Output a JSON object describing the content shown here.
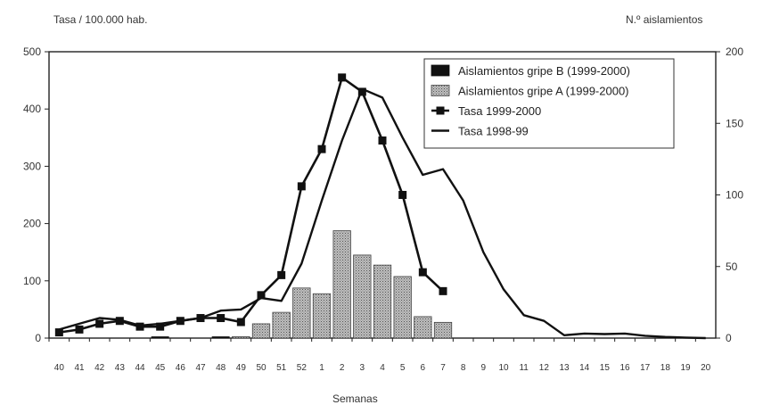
{
  "chart_data": {
    "type": "bar",
    "title": "",
    "xlabel": "Semanas",
    "ylabel_left": "Tasa / 100.000 hab.",
    "ylabel_right": "N.º aislamientos",
    "ylim_left": [
      0,
      500
    ],
    "ylim_right": [
      0,
      200
    ],
    "yticks_left": [
      "0",
      "100",
      "200",
      "300",
      "400",
      "500"
    ],
    "yticks_right": [
      "0",
      "50",
      "100",
      "150",
      "200"
    ],
    "categories": [
      "40",
      "41",
      "42",
      "43",
      "44",
      "45",
      "46",
      "47",
      "48",
      "49",
      "50",
      "51",
      "52",
      "1",
      "2",
      "3",
      "4",
      "5",
      "6",
      "7",
      "8",
      "9",
      "10",
      "11",
      "12",
      "13",
      "14",
      "15",
      "16",
      "17",
      "18",
      "19",
      "20"
    ],
    "legend_position": "top-right",
    "series": [
      {
        "name": "Aislamientos gripe B (1999-2000)",
        "kind": "bar",
        "axis": "right",
        "color": "#111111",
        "values": [
          0,
          0,
          0,
          0,
          0,
          1,
          0,
          0,
          1,
          1,
          0,
          0,
          0,
          0,
          0,
          0,
          0,
          0,
          0,
          0,
          0,
          0,
          0,
          0,
          0,
          0,
          0,
          0,
          0,
          0,
          0,
          0,
          0
        ]
      },
      {
        "name": "Aislamientos gripe A (1999-2000)",
        "kind": "bar",
        "axis": "right",
        "color": "#a8a8a8",
        "values": [
          0,
          0,
          0,
          0,
          0,
          0,
          0,
          0,
          0,
          1,
          10,
          18,
          35,
          31,
          75,
          58,
          51,
          43,
          15,
          11,
          null,
          null,
          null,
          null,
          null,
          null,
          null,
          null,
          null,
          null,
          null,
          null,
          null
        ]
      },
      {
        "name": "Tasa 1999-2000",
        "kind": "line-marker",
        "axis": "left",
        "color": "#111111",
        "values": [
          10,
          15,
          25,
          30,
          20,
          20,
          30,
          35,
          35,
          28,
          75,
          110,
          265,
          330,
          455,
          430,
          345,
          250,
          115,
          82,
          null,
          null,
          null,
          null,
          null,
          null,
          null,
          null,
          null,
          null,
          null,
          null,
          null
        ]
      },
      {
        "name": "Tasa 1998-99",
        "kind": "line",
        "axis": "left",
        "color": "#111111",
        "values": [
          15,
          25,
          35,
          32,
          22,
          25,
          30,
          35,
          48,
          50,
          70,
          65,
          130,
          240,
          345,
          435,
          420,
          350,
          285,
          295,
          240,
          150,
          85,
          40,
          30,
          5,
          8,
          7,
          8,
          4,
          2,
          1,
          0
        ]
      }
    ]
  }
}
